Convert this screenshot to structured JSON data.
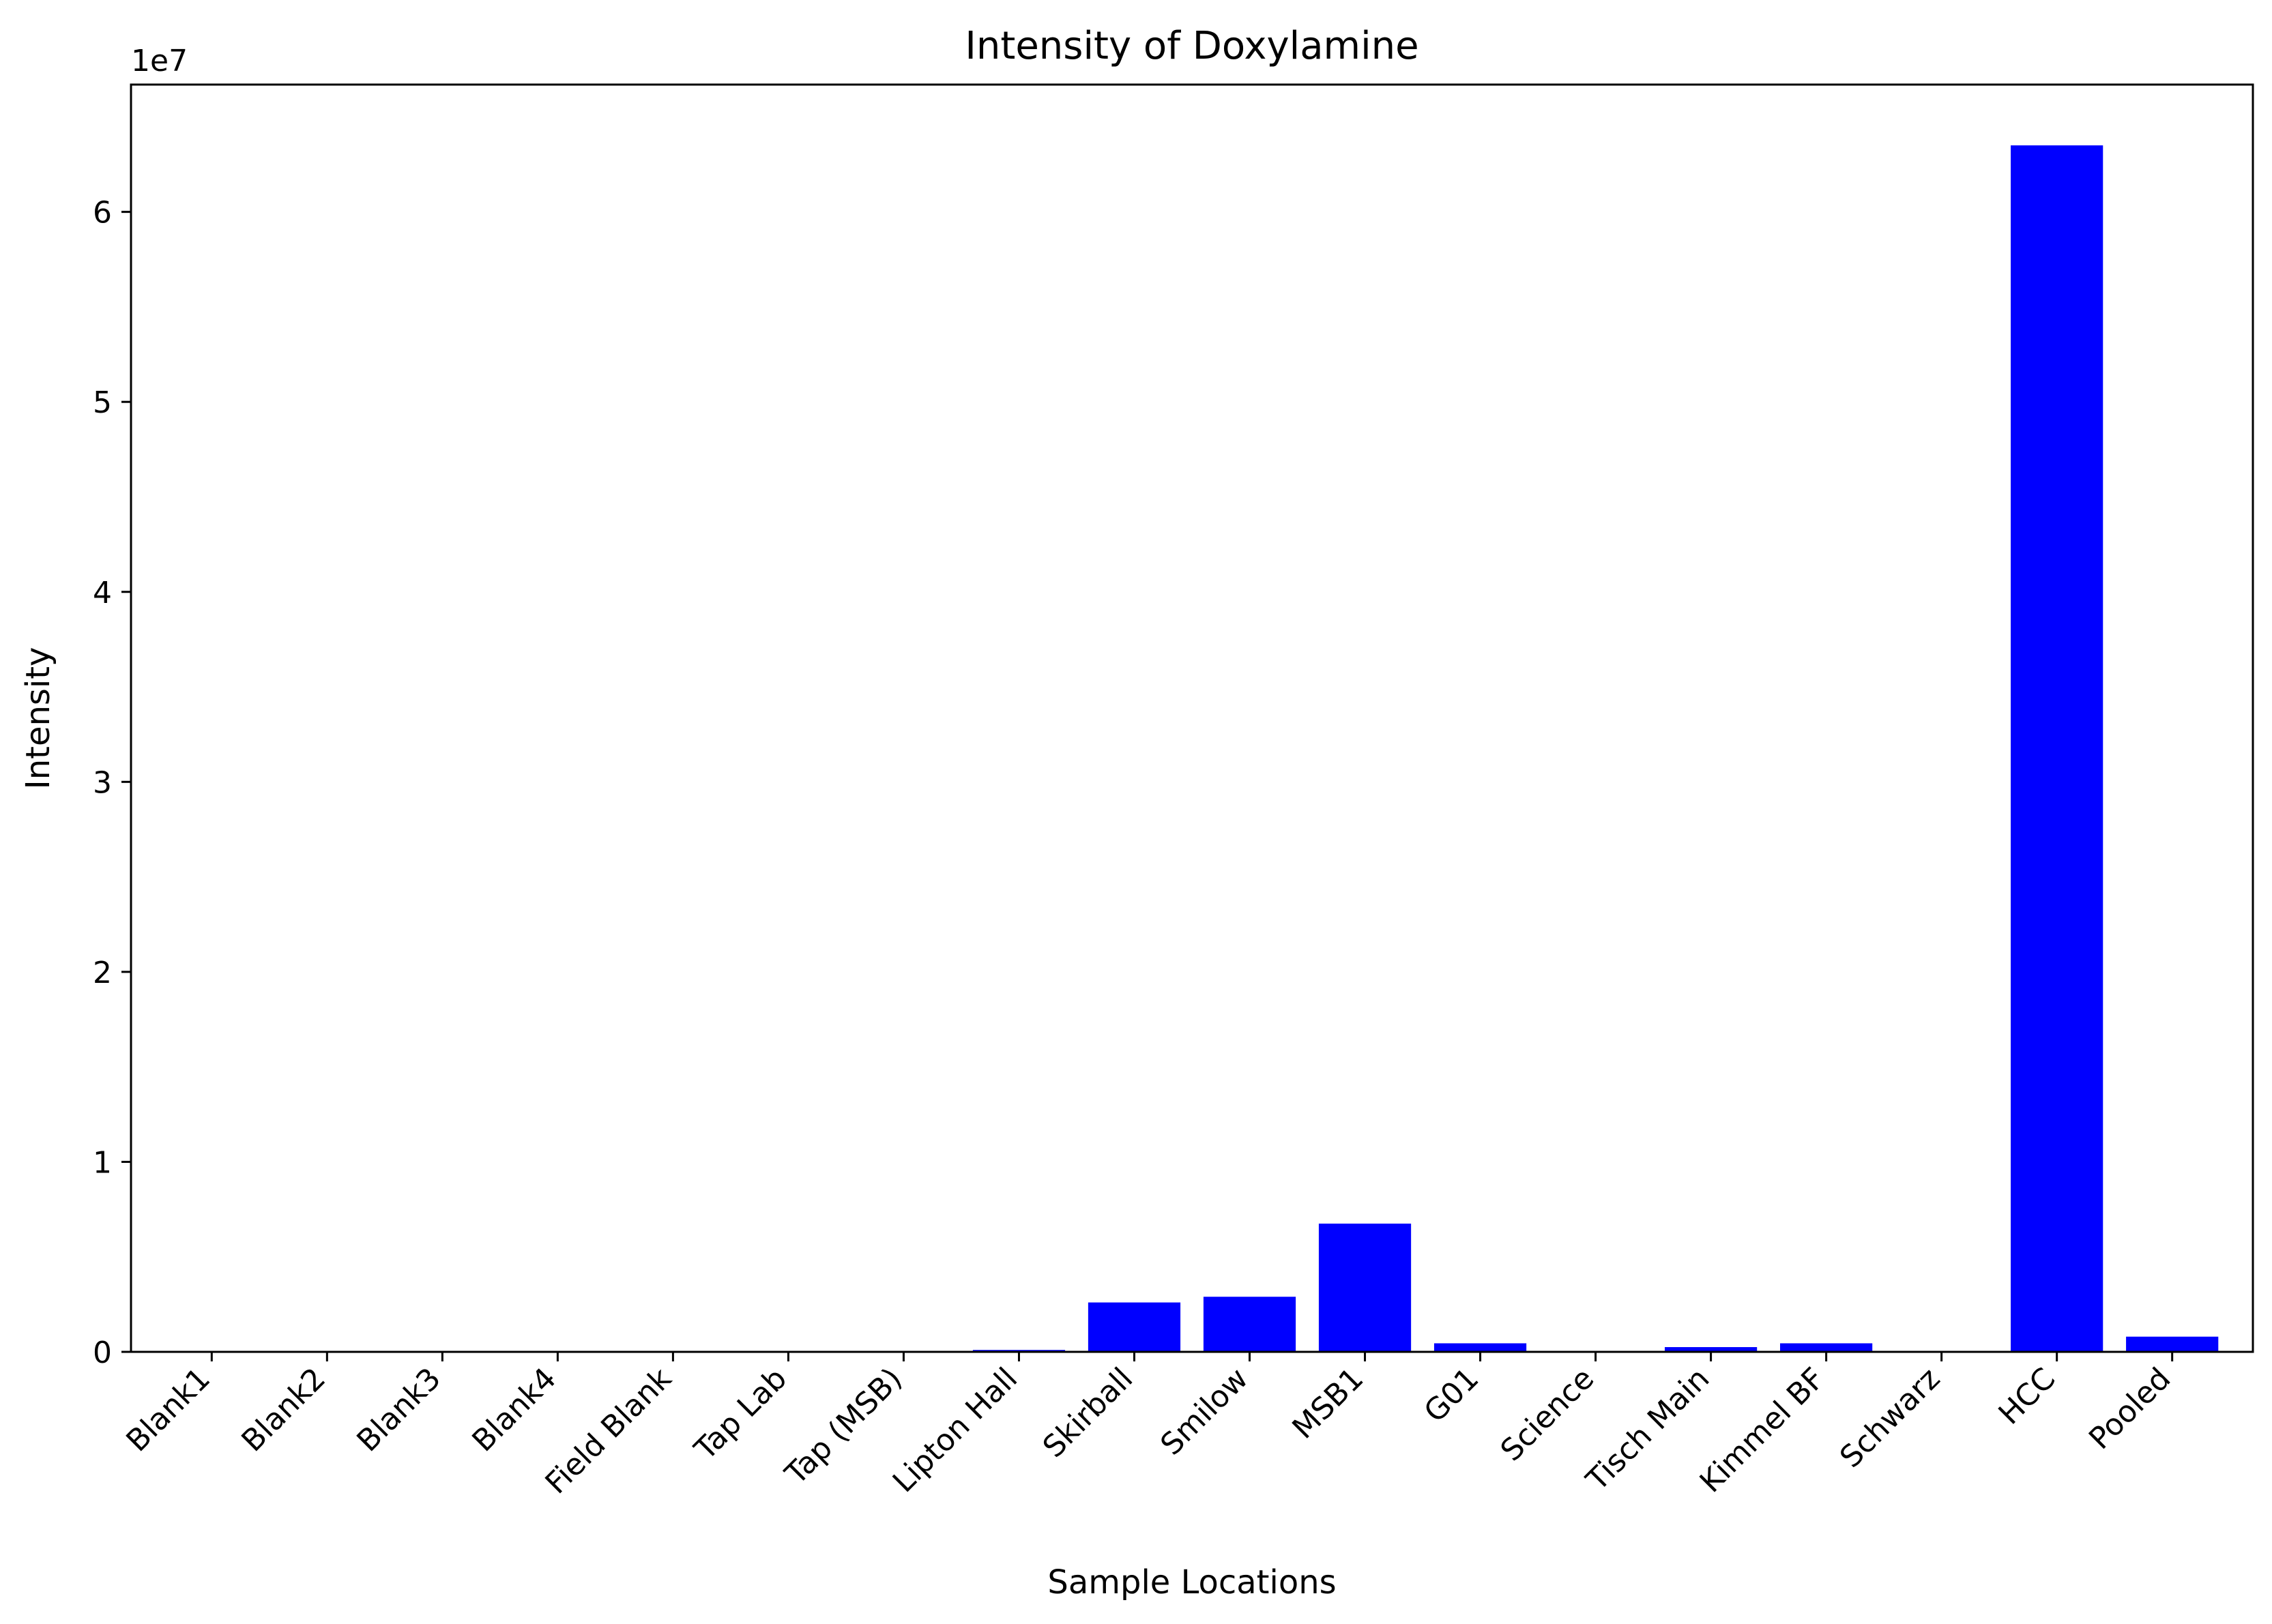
{
  "chart_data": {
    "type": "bar",
    "title": "Intensity of Doxylamine",
    "xlabel": "Sample Locations",
    "ylabel": "Intensity",
    "y_offset_label": "1e7",
    "categories": [
      "Blank1",
      "Blank2",
      "Blank3",
      "Blank4",
      "Field Blank",
      "Tap Lab",
      "Tap (MSB)",
      "Lipton Hall",
      "Skirball",
      "Smilow",
      "MSB1",
      "G01",
      "Science",
      "Tisch Main",
      "Kimmel BF",
      "Schwarz",
      "HCC",
      "Pooled"
    ],
    "values": [
      0,
      0,
      0,
      0,
      0,
      0,
      0,
      100000,
      2600000,
      2900000,
      6750000,
      450000,
      0,
      250000,
      450000,
      0,
      63500000,
      800000
    ],
    "ylim": [
      0,
      66700000
    ],
    "yticks": [
      0,
      10000000,
      20000000,
      30000000,
      40000000,
      50000000,
      60000000
    ],
    "ytick_labels": [
      "0",
      "1",
      "2",
      "3",
      "4",
      "5",
      "6"
    ],
    "bar_color": "#0000ff",
    "grid": false,
    "legend": "none"
  }
}
